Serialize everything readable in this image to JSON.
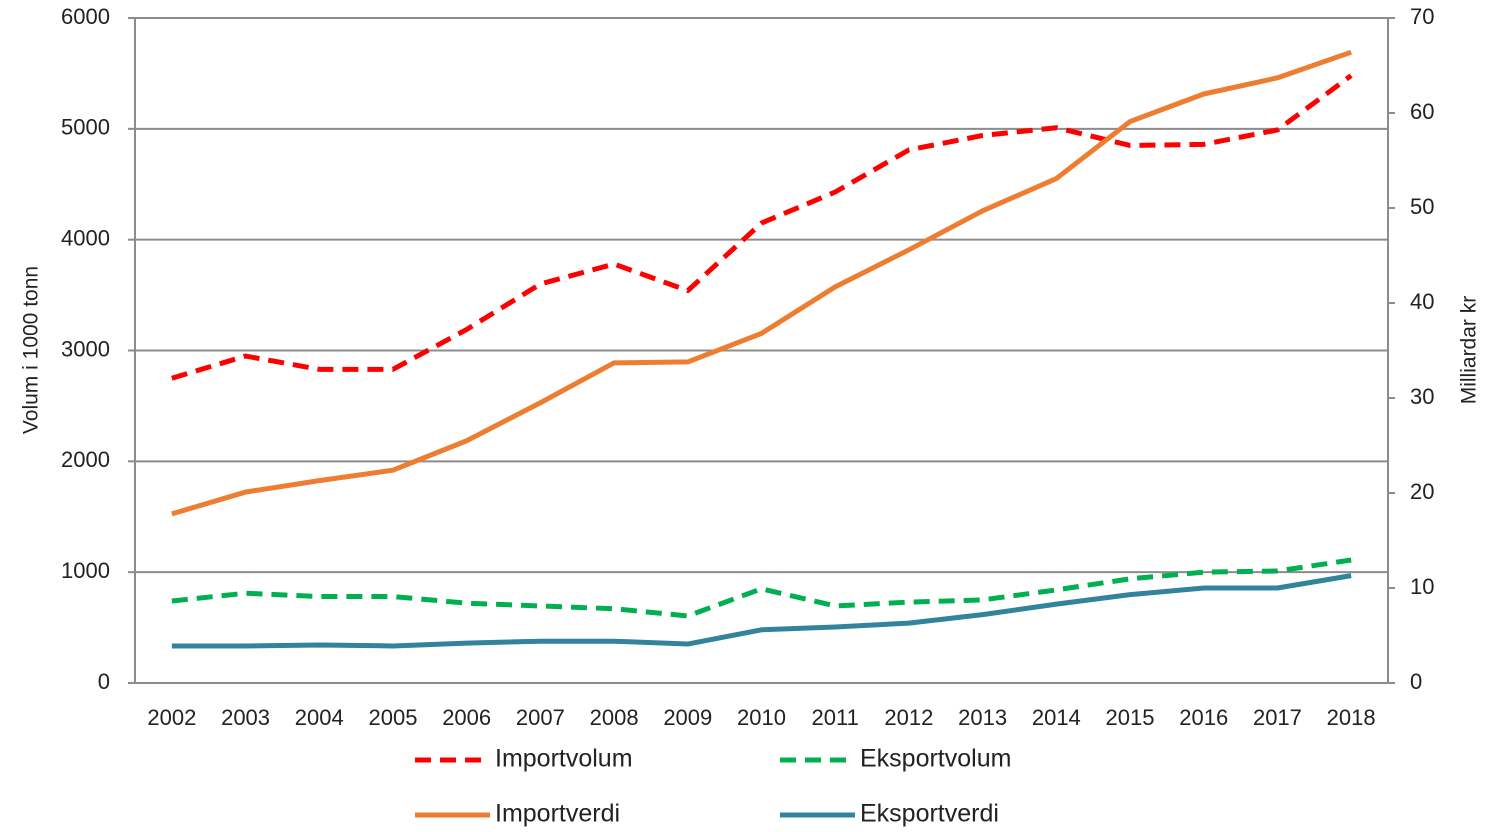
{
  "chart_data": {
    "type": "line",
    "y_label": "Volum i 1000 tonn",
    "y2_label": "Milliardar kr",
    "categories": [
      "2002",
      "2003",
      "2004",
      "2005",
      "2006",
      "2007",
      "2008",
      "2009",
      "2010",
      "2011",
      "2012",
      "2013",
      "2014",
      "2015",
      "2016",
      "2017",
      "2018"
    ],
    "series": [
      {
        "name": "Importvolum",
        "color": "#ff0000",
        "dashed": true,
        "values": [
          2750,
          2950,
          2830,
          2830,
          3190,
          3600,
          3780,
          3540,
          4150,
          4430,
          4810,
          4940,
          5010,
          4850,
          4860,
          4990,
          5480
        ]
      },
      {
        "name": "Eksportvolum",
        "color": "#00b050",
        "dashed": true,
        "values": [
          740,
          810,
          780,
          780,
          720,
          695,
          670,
          605,
          850,
          695,
          730,
          750,
          840,
          940,
          1000,
          1010,
          1110
        ]
      },
      {
        "name": "Importverdi",
        "color": "#ed7d31",
        "dashed": false,
        "axis": "y2",
        "values": [
          17.8,
          20.1,
          21.3,
          22.4,
          25.5,
          29.5,
          33.7,
          33.8,
          36.8,
          41.7,
          45.6,
          49.7,
          53.1,
          59.1,
          62,
          63.7,
          66.4
        ]
      },
      {
        "name": "Eksportverdi",
        "color": "#31849b",
        "dashed": false,
        "axis": "y2",
        "values": [
          3.9,
          3.9,
          4.0,
          3.9,
          4.2,
          4.4,
          4.4,
          4.1,
          5.6,
          5.9,
          6.3,
          7.2,
          8.3,
          9.3,
          10.0,
          10.0,
          11.3
        ]
      }
    ],
    "ylim": [
      0,
      6000
    ],
    "yticks": [
      0,
      1000,
      2000,
      3000,
      4000,
      5000,
      6000
    ],
    "y2lim": [
      0,
      70
    ],
    "y2ticks": [
      0,
      10,
      20,
      30,
      40,
      50,
      60,
      70
    ],
    "grid": true
  }
}
